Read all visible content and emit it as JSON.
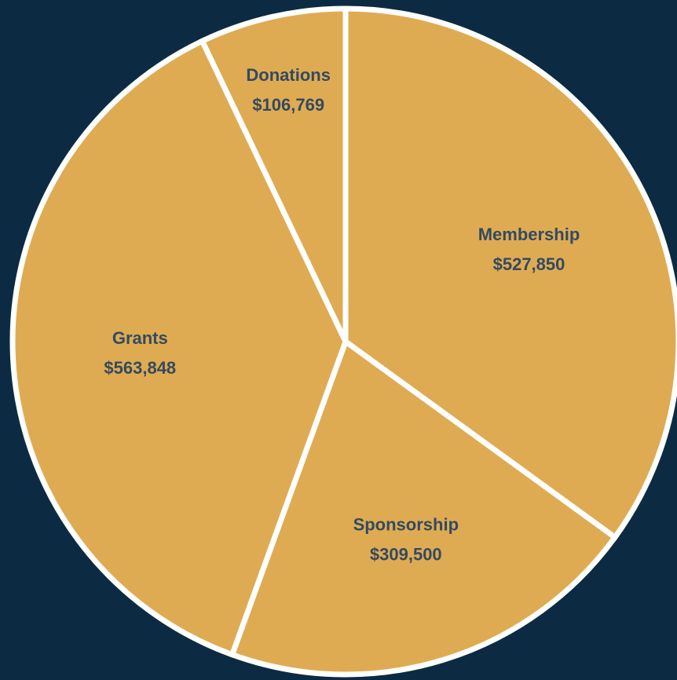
{
  "chart_data": {
    "type": "pie",
    "title": "",
    "start_angle_deg": 0,
    "direction": "clockwise",
    "legend": "none",
    "colors": {
      "background": "#0c2b43",
      "slice_fill": "#dfab52",
      "slice_stroke": "#ffffff",
      "label_text": "#334a61"
    },
    "slices": [
      {
        "label": "Membership",
        "value": 527850,
        "value_label": "$527,850"
      },
      {
        "label": "Sponsorship",
        "value": 309500,
        "value_label": "$309,500"
      },
      {
        "label": "Grants",
        "value": 563848,
        "value_label": "$563,848"
      },
      {
        "label": "Donations",
        "value": 106769,
        "value_label": "$106,769"
      }
    ]
  }
}
